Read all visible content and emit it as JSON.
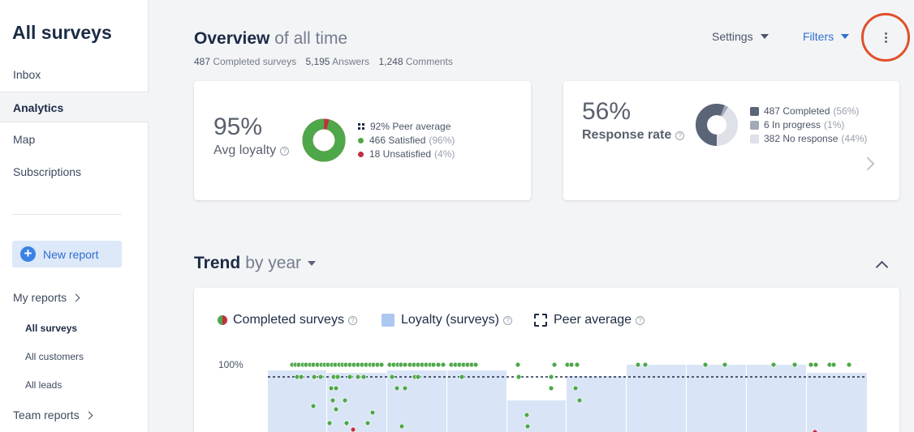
{
  "sidebar": {
    "title": "All surveys",
    "items": [
      {
        "label": "Inbox",
        "active": false
      },
      {
        "label": "Analytics",
        "active": true
      },
      {
        "label": "Map",
        "active": false
      },
      {
        "label": "Subscriptions",
        "active": false
      }
    ],
    "new_report": "New report",
    "my_reports": {
      "label": "My reports",
      "items": [
        "All surveys",
        "All customers",
        "All leads"
      ]
    },
    "team_reports": "Team reports"
  },
  "header": {
    "title_bold": "Overview",
    "title_light": "of all time",
    "stats": [
      {
        "value": "487",
        "label": "Completed surveys"
      },
      {
        "value": "5,195",
        "label": "Answers"
      },
      {
        "value": "1,248",
        "label": "Comments"
      }
    ],
    "settings_label": "Settings",
    "filters_label": "Filters"
  },
  "loyalty_card": {
    "pct": "95%",
    "label": "Avg loyalty",
    "help": "?",
    "legend": [
      {
        "text": "92% Peer average",
        "muted": ""
      },
      {
        "text": "466 Satisfied",
        "muted": "(96%)"
      },
      {
        "text": "18 Unsatisfied",
        "muted": "(4%)"
      }
    ],
    "satisfied_fraction": 0.96
  },
  "response_card": {
    "pct": "56%",
    "label": "Response rate",
    "help": "?",
    "legend": [
      {
        "text": "487 Completed",
        "muted": "(56%)"
      },
      {
        "text": "6 In progress",
        "muted": "(1%)"
      },
      {
        "text": "382 No response",
        "muted": "(44%)"
      }
    ],
    "fractions": [
      0.56,
      0.01,
      0.44
    ]
  },
  "trend": {
    "title_bold": "Trend",
    "title_light": "by year",
    "legend": [
      "Completed surveys",
      "Loyalty (surveys)",
      "Peer average"
    ],
    "help": "?",
    "y_tick": "100%"
  },
  "colors": {
    "accent": "#3b82e6",
    "satisfied": "#4ea84a",
    "unsatisfied": "#c0303f",
    "completed": "#5b6578",
    "in_progress": "#a3a9b6",
    "no_response": "#dfe1e8",
    "bar": "#d9e5f6",
    "highlight": "#e0502a"
  },
  "icons": [
    "plus-icon",
    "chevron-right-icon",
    "caret-down-icon",
    "kebab-icon",
    "help-icon",
    "chevron-up-icon"
  ]
}
